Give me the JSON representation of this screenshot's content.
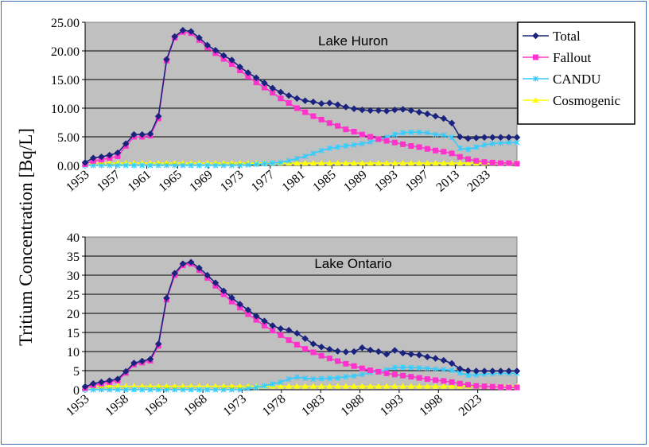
{
  "y_axis_title": "Tritium Concentration [Bq/L]",
  "legend": {
    "entries": [
      {
        "name": "Total",
        "color": "#1a237e",
        "marker": "diamond"
      },
      {
        "name": "Fallout",
        "color": "#ff33cc",
        "marker": "square"
      },
      {
        "name": "CANDU",
        "color": "#33ccff",
        "marker": "x"
      },
      {
        "name": "Cosmogenic",
        "color": "#ffff00",
        "marker": "triangle"
      }
    ]
  },
  "colors": {
    "plot_background": "#c0c0c0",
    "total": "#1a237e",
    "fallout": "#ff33cc",
    "candu": "#33ccff",
    "cosmogenic": "#ffff00"
  },
  "chart_data": [
    {
      "type": "line",
      "title": "Lake Huron",
      "ylim": [
        0,
        25
      ],
      "y_ticks": [
        "0.00",
        "5.00",
        "10.00",
        "15.00",
        "20.00",
        "25.00"
      ],
      "x_tick_labels": [
        "1953",
        "1957",
        "1961",
        "1965",
        "1969",
        "1973",
        "1977",
        "1981",
        "1985",
        "1989",
        "1993",
        "1997",
        "2013",
        "2033"
      ],
      "grid": true,
      "legend_position": "top-right",
      "series": [
        {
          "name": "Total",
          "values": [
            0.5,
            1.3,
            1.5,
            1.8,
            2.2,
            3.8,
            5.4,
            5.4,
            5.5,
            8.6,
            18.5,
            22.5,
            23.6,
            23.4,
            22.3,
            21.0,
            20.1,
            19.2,
            18.4,
            17.2,
            16.2,
            15.3,
            14.4,
            13.5,
            12.8,
            12.2,
            11.7,
            11.3,
            11.1,
            10.8,
            10.9,
            10.6,
            10.2,
            9.9,
            9.7,
            9.6,
            9.6,
            9.5,
            9.7,
            9.8,
            9.6,
            9.3,
            9.0,
            8.6,
            8.2,
            7.4,
            5.0,
            4.7,
            4.8,
            4.9,
            4.9,
            4.9,
            4.9,
            4.9
          ]
        },
        {
          "name": "Fallout",
          "values": [
            0.2,
            0.8,
            1.0,
            1.3,
            1.6,
            3.4,
            5.0,
            5.0,
            5.2,
            8.2,
            18.3,
            22.3,
            23.3,
            23.1,
            21.9,
            20.6,
            19.6,
            18.6,
            17.7,
            16.6,
            15.5,
            14.5,
            13.6,
            12.7,
            11.7,
            10.9,
            10.0,
            9.3,
            8.6,
            8.0,
            7.4,
            6.9,
            6.3,
            5.9,
            5.4,
            5.0,
            4.6,
            4.3,
            4.0,
            3.7,
            3.4,
            3.2,
            2.9,
            2.6,
            2.4,
            2.1,
            1.5,
            1.1,
            0.8,
            0.6,
            0.5,
            0.4,
            0.4,
            0.3
          ]
        },
        {
          "name": "CANDU",
          "values": [
            0,
            0,
            0,
            0,
            0,
            0,
            0,
            0,
            0,
            0,
            0,
            0,
            0,
            0,
            0,
            0,
            0,
            0,
            0,
            0,
            0.1,
            0.2,
            0.3,
            0.4,
            0.5,
            0.8,
            1.2,
            1.6,
            2.1,
            2.6,
            3.0,
            3.2,
            3.4,
            3.6,
            3.8,
            4.1,
            4.5,
            4.9,
            5.4,
            5.7,
            5.8,
            5.8,
            5.7,
            5.4,
            5.3,
            4.9,
            3.0,
            2.8,
            3.2,
            3.6,
            3.8,
            3.9,
            4.0,
            4.0
          ]
        },
        {
          "name": "Cosmogenic",
          "values": [
            0.4,
            0.4,
            0.4,
            0.4,
            0.4,
            0.4,
            0.4,
            0.4,
            0.4,
            0.4,
            0.4,
            0.4,
            0.4,
            0.4,
            0.4,
            0.4,
            0.4,
            0.4,
            0.4,
            0.4,
            0.4,
            0.4,
            0.4,
            0.4,
            0.4,
            0.4,
            0.4,
            0.4,
            0.4,
            0.4,
            0.4,
            0.4,
            0.4,
            0.4,
            0.4,
            0.4,
            0.4,
            0.4,
            0.4,
            0.4,
            0.4,
            0.4,
            0.4,
            0.4,
            0.4,
            0.4,
            0.4,
            0.4,
            0.4,
            0.4,
            0.4,
            0.4,
            0.4,
            0.4
          ]
        }
      ]
    },
    {
      "type": "line",
      "title": "Lake Ontario",
      "ylim": [
        0,
        40
      ],
      "y_ticks": [
        "0",
        "5",
        "10",
        "15",
        "20",
        "25",
        "30",
        "35",
        "40"
      ],
      "x_tick_labels": [
        "1953",
        "1958",
        "1963",
        "1968",
        "1973",
        "1978",
        "1983",
        "1988",
        "1993",
        "1998",
        "2023"
      ],
      "grid": true,
      "series": [
        {
          "name": "Total",
          "values": [
            0.8,
            1.6,
            2.0,
            2.4,
            2.8,
            4.8,
            7.0,
            7.5,
            8.0,
            12.0,
            24.0,
            30.5,
            33.0,
            33.4,
            31.9,
            30.0,
            28.0,
            25.9,
            24.1,
            22.4,
            20.9,
            19.3,
            18.0,
            16.8,
            16.0,
            15.6,
            14.8,
            13.4,
            12.0,
            11.2,
            10.6,
            10.1,
            9.9,
            10.0,
            11.0,
            10.4,
            10.0,
            9.3,
            10.3,
            9.6,
            9.3,
            9.1,
            8.6,
            8.2,
            7.7,
            6.9,
            5.5,
            5.0,
            4.9,
            4.9,
            4.9,
            4.9,
            4.9,
            4.9
          ]
        },
        {
          "name": "Fallout",
          "values": [
            0.4,
            1.2,
            1.6,
            2.0,
            2.4,
            4.4,
            6.6,
            7.1,
            7.6,
            11.5,
            23.6,
            30.0,
            32.6,
            33.0,
            31.3,
            29.3,
            27.2,
            25.0,
            23.1,
            21.5,
            19.8,
            18.3,
            16.8,
            15.5,
            14.3,
            13.0,
            11.8,
            10.7,
            9.8,
            8.9,
            8.2,
            7.5,
            6.8,
            6.2,
            5.6,
            5.1,
            4.7,
            4.3,
            4.0,
            3.7,
            3.4,
            3.1,
            2.8,
            2.5,
            2.3,
            2.0,
            1.6,
            1.3,
            1.0,
            0.9,
            0.8,
            0.7,
            0.6,
            0.6
          ]
        },
        {
          "name": "CANDU",
          "values": [
            0,
            0,
            0,
            0,
            0,
            0,
            0,
            0,
            0,
            0,
            0,
            0,
            0,
            0,
            0,
            0,
            0,
            0,
            0,
            0,
            0.3,
            0.6,
            1.0,
            1.5,
            2.0,
            2.8,
            3.3,
            3.0,
            2.8,
            2.9,
            3.0,
            3.1,
            3.4,
            3.6,
            4.0,
            4.5,
            4.8,
            5.2,
            5.8,
            5.9,
            5.8,
            5.7,
            5.6,
            5.4,
            5.3,
            5.1,
            4.4,
            3.8,
            3.9,
            4.1,
            4.2,
            4.3,
            4.3,
            4.3
          ]
        },
        {
          "name": "Cosmogenic",
          "values": [
            0.9,
            0.9,
            0.9,
            0.9,
            0.9,
            0.9,
            0.9,
            0.9,
            0.9,
            0.9,
            0.9,
            0.9,
            0.9,
            0.9,
            0.9,
            0.9,
            0.9,
            0.9,
            0.9,
            0.9,
            0.9,
            0.9,
            0.9,
            0.9,
            0.9,
            0.9,
            0.9,
            0.9,
            0.9,
            0.9,
            0.9,
            0.9,
            0.9,
            0.9,
            0.9,
            0.9,
            0.9,
            0.9,
            0.9,
            0.9,
            0.9,
            0.9,
            0.9,
            0.9,
            0.9,
            0.9,
            0.9,
            0.9,
            0.9,
            0.9,
            0.9,
            0.9,
            0.9,
            0.9
          ]
        }
      ]
    }
  ]
}
